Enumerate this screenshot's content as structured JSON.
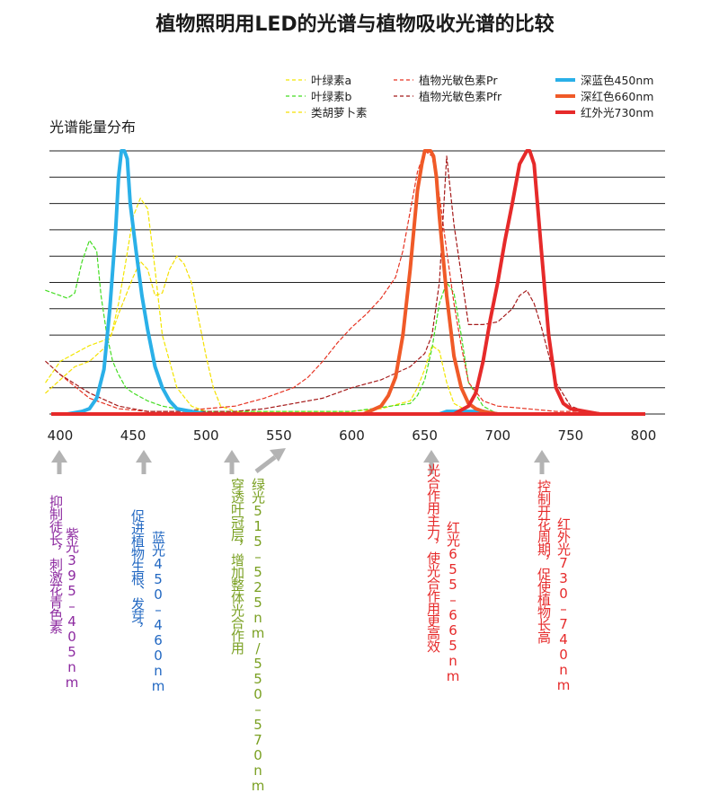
{
  "chart_data": {
    "type": "line",
    "title": "植物照明用LED的光谱与植物吸收光谱的比较",
    "ylabel": "光谱能量分布",
    "xlim": [
      400,
      800
    ],
    "ylim": [
      0,
      1
    ],
    "x_ticks": [
      "400",
      "450",
      "500",
      "550",
      "600",
      "650",
      "700",
      "750",
      "800"
    ],
    "grid": true,
    "series": [
      {
        "name": "叶绿素a",
        "style": "dashed",
        "color": "#f2e600",
        "x": [
          390,
          400,
          410,
          420,
          430,
          435,
          440,
          445,
          450,
          455,
          460,
          465,
          470,
          480,
          490,
          500,
          510,
          520,
          540,
          600,
          620,
          640,
          645,
          650,
          655,
          660,
          665,
          670,
          680,
          700
        ],
        "y": [
          0.12,
          0.2,
          0.23,
          0.26,
          0.28,
          0.3,
          0.42,
          0.58,
          0.75,
          0.82,
          0.78,
          0.55,
          0.3,
          0.1,
          0.03,
          0.01,
          0.01,
          0.01,
          0.01,
          0.01,
          0.02,
          0.05,
          0.1,
          0.17,
          0.26,
          0.24,
          0.12,
          0.04,
          0.01,
          0
        ]
      },
      {
        "name": "叶绿素b",
        "style": "dashed",
        "color": "#44dd22",
        "x": [
          390,
          400,
          405,
          410,
          415,
          420,
          425,
          428,
          432,
          436,
          440,
          445,
          450,
          460,
          470,
          480,
          500,
          550,
          600,
          640,
          645,
          650,
          655,
          660,
          665,
          670,
          675,
          680,
          690,
          700
        ],
        "y": [
          0.47,
          0.45,
          0.44,
          0.46,
          0.58,
          0.66,
          0.62,
          0.45,
          0.3,
          0.2,
          0.15,
          0.1,
          0.08,
          0.05,
          0.03,
          0.02,
          0.01,
          0.01,
          0.01,
          0.04,
          0.07,
          0.13,
          0.25,
          0.42,
          0.5,
          0.46,
          0.3,
          0.12,
          0.03,
          0
        ]
      },
      {
        "name": "类胡萝卜素",
        "style": "dashed",
        "color": "#f5e000",
        "x": [
          390,
          400,
          410,
          420,
          430,
          435,
          440,
          445,
          450,
          455,
          460,
          465,
          470,
          475,
          480,
          485,
          490,
          495,
          500,
          505,
          510,
          520,
          530
        ],
        "y": [
          0.08,
          0.13,
          0.18,
          0.2,
          0.25,
          0.3,
          0.38,
          0.45,
          0.52,
          0.58,
          0.55,
          0.45,
          0.46,
          0.55,
          0.6,
          0.57,
          0.5,
          0.36,
          0.22,
          0.1,
          0.03,
          0.01,
          0
        ]
      },
      {
        "name": "植物光敏色素Pr",
        "style": "dashed",
        "color": "#e63322",
        "x": [
          400,
          420,
          440,
          460,
          480,
          500,
          520,
          540,
          560,
          570,
          580,
          590,
          600,
          610,
          620,
          630,
          635,
          640,
          645,
          650,
          655,
          660,
          665,
          670,
          675,
          680,
          690,
          700,
          720,
          740,
          760
        ],
        "y": [
          0.15,
          0.06,
          0.02,
          0.01,
          0.01,
          0.02,
          0.03,
          0.06,
          0.1,
          0.14,
          0.2,
          0.27,
          0.33,
          0.38,
          0.44,
          0.52,
          0.62,
          0.77,
          0.92,
          1.0,
          0.98,
          0.83,
          0.62,
          0.42,
          0.26,
          0.12,
          0.05,
          0.03,
          0.02,
          0.01,
          0.01
        ]
      },
      {
        "name": "植物光敏色素Pfr",
        "style": "dashed",
        "color": "#a51a1a",
        "x": [
          390,
          400,
          420,
          440,
          460,
          480,
          500,
          520,
          540,
          560,
          580,
          600,
          620,
          640,
          650,
          655,
          660,
          665,
          670,
          680,
          690,
          700,
          710,
          715,
          720,
          725,
          730,
          740,
          750,
          760,
          780,
          800
        ],
        "y": [
          0.2,
          0.15,
          0.08,
          0.03,
          0.01,
          0.01,
          0.01,
          0.01,
          0.02,
          0.04,
          0.06,
          0.1,
          0.13,
          0.18,
          0.23,
          0.3,
          0.5,
          0.98,
          0.72,
          0.34,
          0.34,
          0.35,
          0.4,
          0.45,
          0.47,
          0.42,
          0.33,
          0.12,
          0.03,
          0.01,
          0,
          0
        ]
      },
      {
        "name": "深蓝色450nm",
        "style": "solid",
        "color": "#2ab0e8",
        "x": [
          405,
          415,
          420,
          425,
          430,
          434,
          438,
          440,
          442,
          444,
          446,
          448,
          452,
          456,
          460,
          465,
          470,
          475,
          480,
          490,
          500,
          660,
          665,
          675,
          690,
          700
        ],
        "y": [
          0,
          0.01,
          0.02,
          0.06,
          0.17,
          0.4,
          0.7,
          0.9,
          1.0,
          1.0,
          0.97,
          0.8,
          0.62,
          0.45,
          0.32,
          0.18,
          0.1,
          0.05,
          0.02,
          0.01,
          0,
          0,
          0.01,
          0.01,
          0.01,
          0
        ]
      },
      {
        "name": "深红色660nm",
        "style": "solid",
        "color": "#f05a28",
        "x": [
          608,
          620,
          625,
          630,
          635,
          640,
          645,
          648,
          650,
          652,
          654,
          656,
          658,
          660,
          665,
          670,
          675,
          680,
          685,
          690,
          700
        ],
        "y": [
          0,
          0.03,
          0.07,
          0.14,
          0.3,
          0.55,
          0.85,
          0.95,
          1.0,
          1.0,
          1.0,
          0.98,
          0.9,
          0.75,
          0.45,
          0.22,
          0.1,
          0.04,
          0.02,
          0.01,
          0
        ]
      },
      {
        "name": "红外光730nm",
        "style": "solid",
        "color": "#e62a2a",
        "x": [
          400,
          650,
          670,
          680,
          685,
          690,
          695,
          700,
          705,
          710,
          715,
          720,
          722,
          725,
          730,
          735,
          740,
          745,
          750,
          760,
          770,
          780,
          790,
          800
        ],
        "y": [
          0,
          0,
          0,
          0.03,
          0.08,
          0.2,
          0.36,
          0.5,
          0.66,
          0.8,
          0.95,
          1.0,
          1.0,
          0.95,
          0.62,
          0.3,
          0.1,
          0.04,
          0.02,
          0.01,
          0,
          0,
          0,
          0
        ]
      }
    ],
    "x_axis_line_color": "#e62a2a",
    "legend_position": "top",
    "annotations": [
      {
        "x": 400,
        "color": "#8d2aa0",
        "line1": "抑制徒长，刺激花青色素",
        "line2": "紫光395–405nm"
      },
      {
        "x": 455,
        "color": "#2268c2",
        "line1": "促进植物生根、发芽，",
        "line2": "蓝光450–460nm"
      },
      {
        "x": 530,
        "color": "#7aa022",
        "line1": "穿透叶冠层，增加整体光合作用",
        "line2": "绿光515–525nm/550–570nm"
      },
      {
        "x": 660,
        "color": "#e62a2a",
        "line1": "光合作用主力，使光合作用更高效",
        "line2": "红光655–665nm"
      },
      {
        "x": 730,
        "color": "#e62a2a",
        "line1": "控制开花周期，促使植物长高",
        "line2": "红外光730–740nm"
      }
    ]
  }
}
